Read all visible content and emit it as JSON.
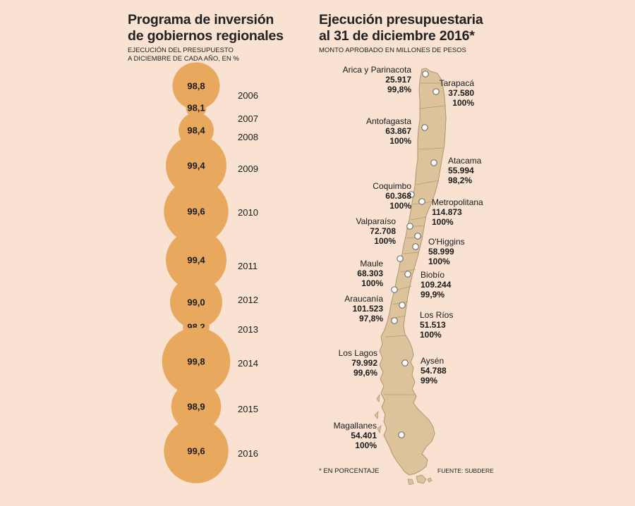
{
  "left": {
    "title_line1": "Programa de inversión",
    "title_line2": "de gobiernos regionales",
    "subtitle_line1": "EJECUCIÓN DEL PRESUPUESTO",
    "subtitle_line2": "A DICIEMBRE DE CADA AÑO, EN %"
  },
  "right": {
    "title_line1": "Ejecución presupuestaria",
    "title_line2": "al 31 de diciembre 2016*",
    "subtitle": "MONTO APROBADO EN MILLONES DE PESOS",
    "footnote": "* EN PORCENTAJE",
    "source": "FUENTE: SUBDERE"
  },
  "colors": {
    "background": "#f9e2d1",
    "bubble": "#e8a95e",
    "map_fill": "#dcc39b",
    "map_stroke": "#ad9570"
  },
  "chart_data": [
    {
      "type": "bubble",
      "categories": [
        "2006",
        "2007",
        "2008",
        "2009",
        "2010",
        "2011",
        "2012",
        "2013",
        "2014",
        "2015",
        "2016"
      ],
      "values": [
        98.8,
        98.1,
        98.4,
        99.4,
        99.6,
        99.4,
        99.0,
        98.2,
        99.8,
        98.9,
        99.6
      ],
      "labels": [
        "98,8",
        "98,1",
        "98,4",
        "99,4",
        "99,6",
        "99,4",
        "99,0",
        "98,2",
        "99,8",
        "98,9",
        "99,6"
      ]
    },
    {
      "type": "map",
      "regions": [
        {
          "name": "Arica y Parinacota",
          "amount": "25.917",
          "pct": "99,8%"
        },
        {
          "name": "Tarapacá",
          "amount": "37.580",
          "pct": "100%"
        },
        {
          "name": "Antofagasta",
          "amount": "63.867",
          "pct": "100%"
        },
        {
          "name": "Atacama",
          "amount": "55.994",
          "pct": "98,2%"
        },
        {
          "name": "Coquimbo",
          "amount": "60.368",
          "pct": "100%"
        },
        {
          "name": "Metropolitana",
          "amount": "114.873",
          "pct": "100%"
        },
        {
          "name": "Valparaíso",
          "amount": "72.708",
          "pct": "100%"
        },
        {
          "name": "O'Higgins",
          "amount": "58.999",
          "pct": "100%"
        },
        {
          "name": "Maule",
          "amount": "68.303",
          "pct": "100%"
        },
        {
          "name": "Biobío",
          "amount": "109.244",
          "pct": "99,9%"
        },
        {
          "name": "Araucanía",
          "amount": "101.523",
          "pct": "97,8%"
        },
        {
          "name": "Los Ríos",
          "amount": "51.513",
          "pct": "100%"
        },
        {
          "name": "Los Lagos",
          "amount": "79.992",
          "pct": "99,6%"
        },
        {
          "name": "Aysén",
          "amount": "54.788",
          "pct": "99%"
        },
        {
          "name": "Magallanes",
          "amount": "54.401",
          "pct": "100%"
        }
      ]
    }
  ]
}
